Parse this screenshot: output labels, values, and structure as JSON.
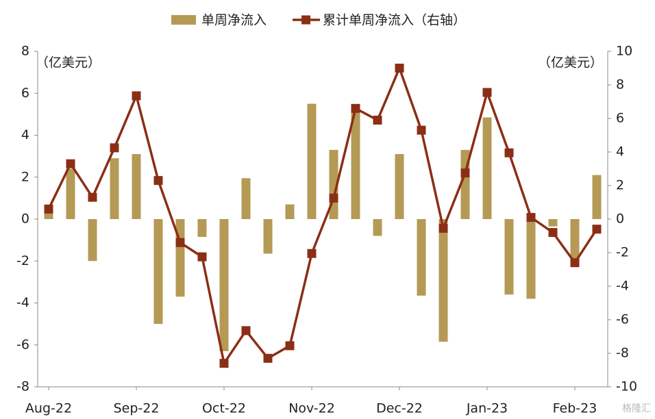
{
  "chart_data": {
    "type": "bar-line",
    "categories": [
      "Aug-22",
      null,
      null,
      null,
      "Sep-22",
      null,
      null,
      null,
      "Oct-22",
      null,
      null,
      null,
      "Nov-22",
      null,
      null,
      null,
      "Dec-22",
      null,
      null,
      null,
      "Jan-23",
      null,
      null,
      null,
      "Feb-23",
      null
    ],
    "series": [
      {
        "name": "单周净流入",
        "color": "#b59a55",
        "kind": "bar",
        "values": [
          0.3,
          2.4,
          -2.0,
          2.9,
          3.1,
          -5.0,
          -3.7,
          -0.85,
          -6.3,
          1.95,
          -1.65,
          0.7,
          5.5,
          3.3,
          5.2,
          -0.8,
          3.1,
          -3.65,
          -5.85,
          3.3,
          4.85,
          -3.6,
          -3.8,
          -0.35,
          -2.0,
          2.1
        ]
      },
      {
        "name": "累计单周净流入（右轴）",
        "color": "#8b2e16",
        "kind": "line",
        "axis": "y2",
        "values": [
          0.6,
          3.3,
          1.3,
          4.25,
          7.35,
          2.3,
          -1.4,
          -2.25,
          -8.6,
          -6.65,
          -8.3,
          -7.55,
          -2.05,
          1.25,
          6.6,
          5.9,
          9.0,
          5.3,
          -0.55,
          2.75,
          7.55,
          3.95,
          0.1,
          -0.8,
          -2.6,
          -0.6
        ]
      }
    ],
    "ylim": [
      -8,
      8
    ],
    "yticks": [
      -8,
      -6,
      -4,
      -2,
      0,
      2,
      4,
      6,
      8
    ],
    "y2lim": [
      -10,
      10
    ],
    "y2ticks": [
      -10,
      -8,
      -6,
      -4,
      -2,
      0,
      2,
      4,
      6,
      8,
      10
    ],
    "ylabel": "（亿美元）",
    "y2label": "（亿美元）",
    "watermark": "格隆汇"
  }
}
